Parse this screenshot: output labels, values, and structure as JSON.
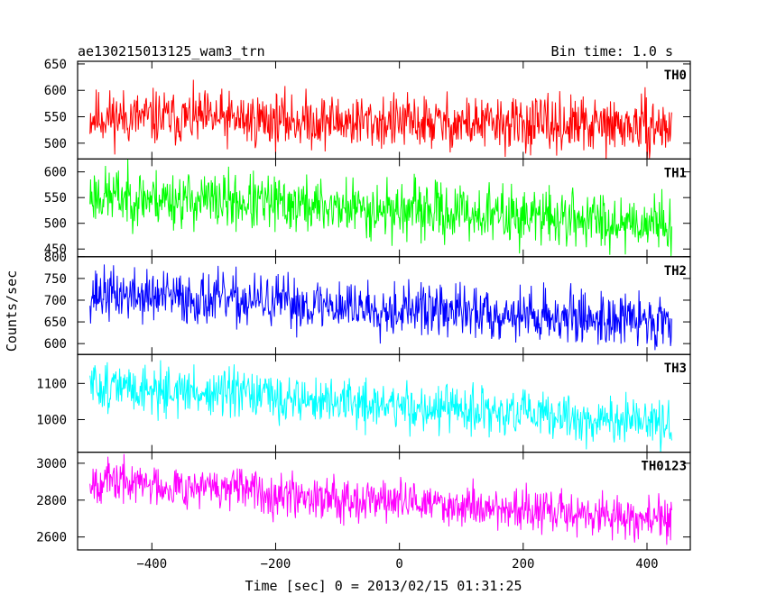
{
  "chart_data": {
    "type": "line",
    "title": "ae130215013125_wam3_trn",
    "subtitle": "Bin time: 1.0 s",
    "xlabel": "Time [sec] 0 = 2013/02/15 01:31:25",
    "ylabel": "Counts/sec",
    "xlim": [
      -520,
      470
    ],
    "xticks": [
      -400,
      -200,
      0,
      200,
      400
    ],
    "x_range_data": [
      -500,
      440
    ],
    "grid": false,
    "legend": "none",
    "panels": [
      {
        "name": "TH0",
        "color": "#ff0000",
        "ylim": [
          470,
          655
        ],
        "yticks": [
          500,
          550,
          600,
          650
        ],
        "trend_start": 550,
        "trend_end": 530,
        "noise": 28,
        "seed": 11
      },
      {
        "name": "TH1",
        "color": "#00ff00",
        "ylim": [
          435,
          625
        ],
        "yticks": [
          450,
          500,
          550,
          600
        ],
        "trend_start": 555,
        "trend_end": 500,
        "noise": 30,
        "seed": 23
      },
      {
        "name": "TH2",
        "color": "#0000ff",
        "ylim": [
          575,
          800
        ],
        "yticks": [
          600,
          650,
          700,
          750,
          800
        ],
        "trend_start": 715,
        "trend_end": 650,
        "noise": 33,
        "seed": 37
      },
      {
        "name": "TH3",
        "color": "#00ffff",
        "ylim": [
          910,
          1180
        ],
        "yticks": [
          1000,
          1100
        ],
        "trend_start": 1095,
        "trend_end": 985,
        "noise": 36,
        "seed": 51
      },
      {
        "name": "TH0123",
        "color": "#ff00ff",
        "ylim": [
          2530,
          3060
        ],
        "yticks": [
          2600,
          2800,
          3000
        ],
        "trend_start": 2910,
        "trend_end": 2690,
        "noise": 62,
        "seed": 67
      }
    ]
  }
}
